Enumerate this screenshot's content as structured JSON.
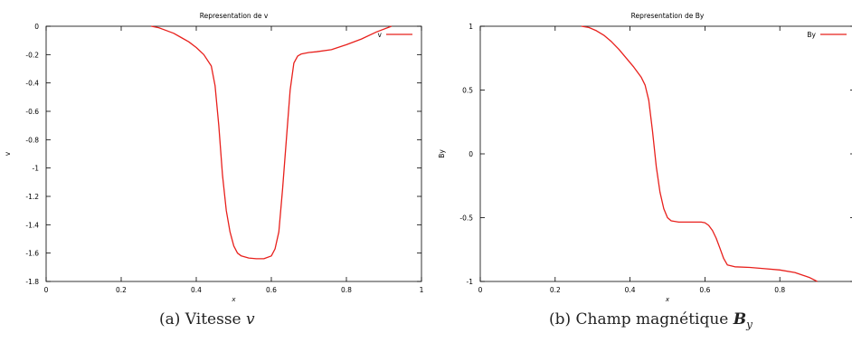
{
  "chart_data": [
    {
      "type": "line",
      "title": "Representation de  v",
      "xlabel": "x",
      "ylabel": "v",
      "xlim": [
        0,
        1
      ],
      "ylim": [
        -1.8,
        0
      ],
      "xticks": [
        0,
        0.2,
        0.4,
        0.6,
        0.8,
        1
      ],
      "xtick_labels": [
        "0",
        "0.2",
        "0.4",
        "0.6",
        "0.8",
        "1"
      ],
      "yticks": [
        0,
        -0.2,
        -0.4,
        -0.6,
        -0.8,
        -1,
        -1.2,
        -1.4,
        -1.6,
        -1.8
      ],
      "ytick_labels": [
        "0",
        "-0.2",
        "-0.4",
        "-0.6",
        "-0.8",
        "-1",
        "-1.2",
        "-1.4",
        "-1.6",
        "-1.8"
      ],
      "grid": false,
      "legend": "top-right",
      "series": [
        {
          "name": "v",
          "color": "#e8201c",
          "x": [
            0.28,
            0.3,
            0.32,
            0.34,
            0.36,
            0.38,
            0.4,
            0.42,
            0.44,
            0.45,
            0.46,
            0.47,
            0.48,
            0.49,
            0.5,
            0.51,
            0.52,
            0.54,
            0.56,
            0.58,
            0.6,
            0.61,
            0.62,
            0.63,
            0.64,
            0.65,
            0.66,
            0.67,
            0.68,
            0.7,
            0.72,
            0.76,
            0.8,
            0.84,
            0.88,
            0.92
          ],
          "y": [
            0,
            -0.01,
            -0.03,
            -0.05,
            -0.08,
            -0.11,
            -0.15,
            -0.2,
            -0.28,
            -0.42,
            -0.7,
            -1.05,
            -1.3,
            -1.45,
            -1.55,
            -1.6,
            -1.62,
            -1.635,
            -1.64,
            -1.64,
            -1.62,
            -1.57,
            -1.45,
            -1.15,
            -0.8,
            -0.45,
            -0.26,
            -0.21,
            -0.195,
            -0.185,
            -0.18,
            -0.165,
            -0.13,
            -0.09,
            -0.04,
            0
          ]
        }
      ]
    },
    {
      "type": "line",
      "title": "Representation de  By",
      "xlabel": "x",
      "ylabel": "By",
      "xlim": [
        0,
        1
      ],
      "ylim": [
        -1,
        1
      ],
      "xticks": [
        0,
        0.2,
        0.4,
        0.6,
        0.8
      ],
      "xtick_labels": [
        "0",
        "0.2",
        "0.4",
        "0.6",
        "0.8"
      ],
      "yticks": [
        1,
        0.5,
        0,
        -0.5,
        -1
      ],
      "ytick_labels": [
        "1",
        "0.5",
        "0",
        "-0.5",
        "-1"
      ],
      "grid": false,
      "legend": "top-right",
      "series": [
        {
          "name": "By",
          "color": "#e8201c",
          "x": [
            0.27,
            0.29,
            0.31,
            0.33,
            0.35,
            0.37,
            0.39,
            0.41,
            0.43,
            0.44,
            0.45,
            0.46,
            0.47,
            0.48,
            0.49,
            0.5,
            0.51,
            0.53,
            0.55,
            0.57,
            0.59,
            0.6,
            0.61,
            0.62,
            0.63,
            0.64,
            0.65,
            0.66,
            0.68,
            0.72,
            0.76,
            0.8,
            0.84,
            0.88,
            0.9
          ],
          "y": [
            1,
            0.99,
            0.965,
            0.93,
            0.88,
            0.82,
            0.75,
            0.68,
            0.6,
            0.54,
            0.42,
            0.18,
            -0.1,
            -0.3,
            -0.43,
            -0.5,
            -0.525,
            -0.535,
            -0.535,
            -0.535,
            -0.535,
            -0.54,
            -0.56,
            -0.6,
            -0.66,
            -0.74,
            -0.82,
            -0.87,
            -0.885,
            -0.89,
            -0.9,
            -0.91,
            -0.93,
            -0.97,
            -1.0
          ]
        }
      ]
    }
  ],
  "captions": [
    {
      "label": "(a) Vitesse ",
      "var": "v"
    },
    {
      "label": "(b) Champ magnétique ",
      "var": "B",
      "sub": "y"
    }
  ]
}
